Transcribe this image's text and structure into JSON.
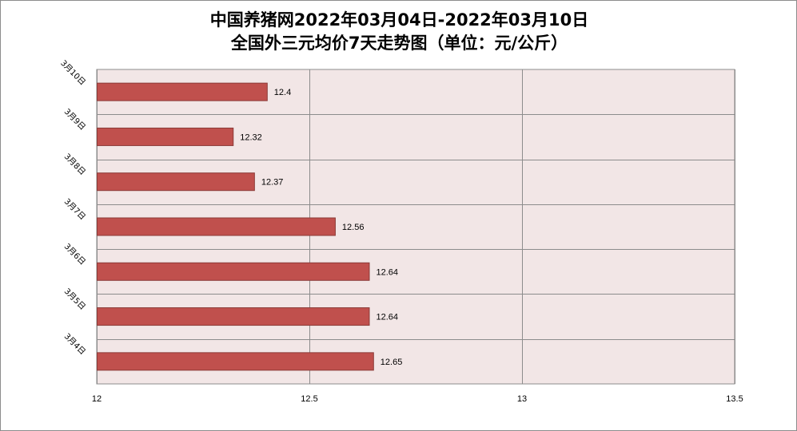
{
  "title_line1": "中国养猪网2022年03月04日-2022年03月10日",
  "title_line2": "全国外三元均价7天走势图（单位：元/公斤）",
  "colors": {
    "bar": "#C0504D",
    "bar_border": "#8B3A37",
    "plot_bg": "#F2E6E6",
    "grid": "#8C8C8C"
  },
  "chart_data": {
    "type": "bar",
    "orientation": "horizontal",
    "title": "中国养猪网2022年03月04日-2022年03月10日 全国外三元均价7天走势图（单位：元/公斤）",
    "categories": [
      "3月4日",
      "3月5日",
      "3月6日",
      "3月7日",
      "3月8日",
      "3月9日",
      "3月10日"
    ],
    "values": [
      12.65,
      12.64,
      12.64,
      12.56,
      12.37,
      12.32,
      12.4
    ],
    "value_labels": [
      "12.65",
      "12.64",
      "12.64",
      "12.56",
      "12.37",
      "12.32",
      "12.4"
    ],
    "xlim": [
      12,
      13.5
    ],
    "xticks": [
      "12",
      "12.5",
      "13",
      "13.5"
    ],
    "grid": true,
    "legend": "none"
  }
}
